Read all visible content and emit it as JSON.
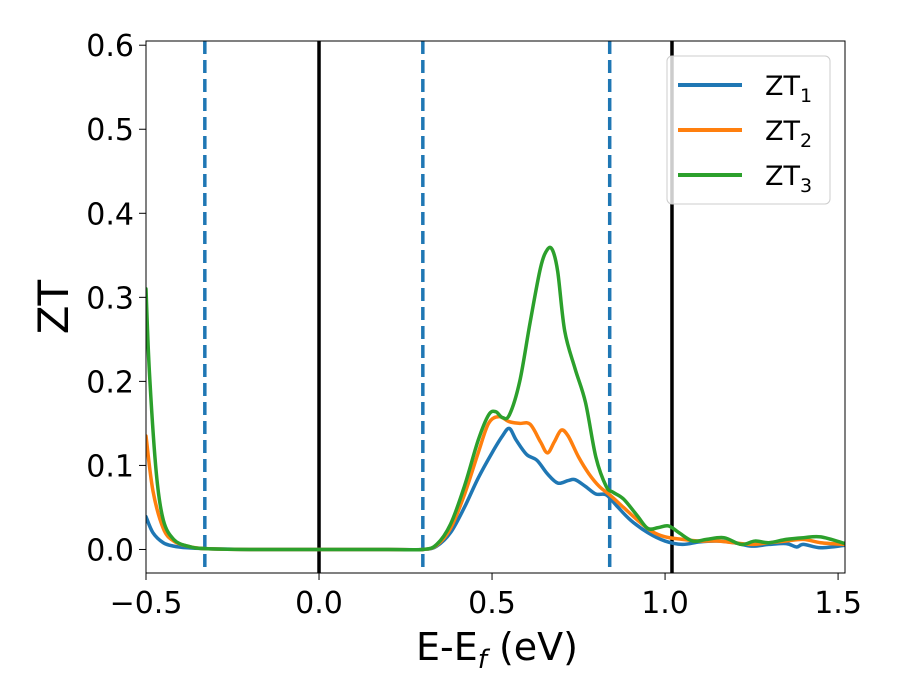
{
  "chart_data": {
    "type": "line",
    "title": "",
    "xlabel": "E-E",
    "xlabel_sub": "f",
    "xlabel_unit": " (eV)",
    "ylabel": "ZT",
    "xlim": [
      -0.5,
      1.52
    ],
    "ylim": [
      -0.028,
      0.605
    ],
    "xticks": [
      -0.5,
      0.0,
      0.5,
      1.0,
      1.5
    ],
    "xtick_labels": [
      "−0.5",
      "0.0",
      "0.5",
      "1.0",
      "1.5"
    ],
    "yticks": [
      0.0,
      0.1,
      0.2,
      0.3,
      0.4,
      0.5,
      0.6
    ],
    "ytick_labels": [
      "0.0",
      "0.1",
      "0.2",
      "0.3",
      "0.4",
      "0.5",
      "0.6"
    ],
    "grid": false,
    "legend_position": "top-right",
    "vlines": [
      {
        "x": -0.33,
        "style": "dashed",
        "color": "#1f77b4"
      },
      {
        "x": 0.0,
        "style": "solid",
        "color": "#000000"
      },
      {
        "x": 0.3,
        "style": "dashed",
        "color": "#1f77b4"
      },
      {
        "x": 0.84,
        "style": "dashed",
        "color": "#1f77b4"
      },
      {
        "x": 1.02,
        "style": "solid",
        "color": "#000000"
      }
    ],
    "series": [
      {
        "name": "ZT",
        "name_sub": "1",
        "color": "#1f77b4",
        "x": [
          -0.5,
          -0.48,
          -0.45,
          -0.42,
          -0.38,
          -0.33,
          -0.2,
          0.0,
          0.2,
          0.3,
          0.34,
          0.38,
          0.42,
          0.46,
          0.5,
          0.53,
          0.55,
          0.57,
          0.6,
          0.63,
          0.66,
          0.69,
          0.72,
          0.74,
          0.77,
          0.8,
          0.83,
          0.86,
          0.9,
          0.95,
          1.0,
          1.05,
          1.1,
          1.15,
          1.2,
          1.25,
          1.3,
          1.35,
          1.38,
          1.4,
          1.45,
          1.52
        ],
        "y": [
          0.039,
          0.02,
          0.008,
          0.004,
          0.002,
          0.001,
          0.0,
          0.0,
          0.0,
          0.0,
          0.004,
          0.02,
          0.05,
          0.085,
          0.115,
          0.135,
          0.144,
          0.13,
          0.113,
          0.106,
          0.09,
          0.079,
          0.082,
          0.083,
          0.075,
          0.066,
          0.065,
          0.052,
          0.035,
          0.02,
          0.01,
          0.006,
          0.009,
          0.01,
          0.008,
          0.004,
          0.006,
          0.007,
          0.003,
          0.006,
          0.002,
          0.005
        ]
      },
      {
        "name": "ZT",
        "name_sub": "2",
        "color": "#ff7f0e",
        "x": [
          -0.5,
          -0.48,
          -0.45,
          -0.42,
          -0.38,
          -0.33,
          -0.2,
          0.0,
          0.2,
          0.3,
          0.34,
          0.38,
          0.42,
          0.46,
          0.49,
          0.52,
          0.55,
          0.58,
          0.61,
          0.64,
          0.66,
          0.68,
          0.7,
          0.72,
          0.75,
          0.78,
          0.81,
          0.84,
          0.88,
          0.92,
          0.96,
          1.0,
          1.05,
          1.1,
          1.15,
          1.2,
          1.25,
          1.3,
          1.35,
          1.4,
          1.45,
          1.52
        ],
        "y": [
          0.135,
          0.07,
          0.025,
          0.01,
          0.004,
          0.001,
          0.0,
          0.0,
          0.0,
          0.0,
          0.005,
          0.025,
          0.065,
          0.115,
          0.15,
          0.158,
          0.152,
          0.15,
          0.149,
          0.128,
          0.115,
          0.128,
          0.142,
          0.135,
          0.11,
          0.09,
          0.075,
          0.065,
          0.05,
          0.035,
          0.022,
          0.015,
          0.012,
          0.01,
          0.01,
          0.008,
          0.006,
          0.008,
          0.01,
          0.012,
          0.008,
          0.006
        ]
      },
      {
        "name": "ZT",
        "name_sub": "3",
        "color": "#2ca02c",
        "x": [
          -0.5,
          -0.49,
          -0.47,
          -0.45,
          -0.42,
          -0.38,
          -0.33,
          -0.2,
          0.0,
          0.2,
          0.3,
          0.34,
          0.38,
          0.42,
          0.46,
          0.49,
          0.51,
          0.53,
          0.55,
          0.58,
          0.61,
          0.64,
          0.66,
          0.675,
          0.69,
          0.71,
          0.74,
          0.77,
          0.8,
          0.83,
          0.85,
          0.88,
          0.92,
          0.95,
          0.98,
          1.01,
          1.04,
          1.08,
          1.12,
          1.17,
          1.22,
          1.26,
          1.3,
          1.35,
          1.4,
          1.45,
          1.52
        ],
        "y": [
          0.31,
          0.21,
          0.09,
          0.035,
          0.012,
          0.004,
          0.001,
          0.0,
          0.0,
          0.0,
          0.0,
          0.006,
          0.03,
          0.075,
          0.13,
          0.16,
          0.164,
          0.157,
          0.16,
          0.2,
          0.27,
          0.335,
          0.357,
          0.356,
          0.33,
          0.26,
          0.215,
          0.175,
          0.11,
          0.075,
          0.068,
          0.06,
          0.04,
          0.025,
          0.026,
          0.028,
          0.02,
          0.01,
          0.012,
          0.014,
          0.006,
          0.01,
          0.008,
          0.012,
          0.014,
          0.015,
          0.007
        ]
      }
    ]
  }
}
